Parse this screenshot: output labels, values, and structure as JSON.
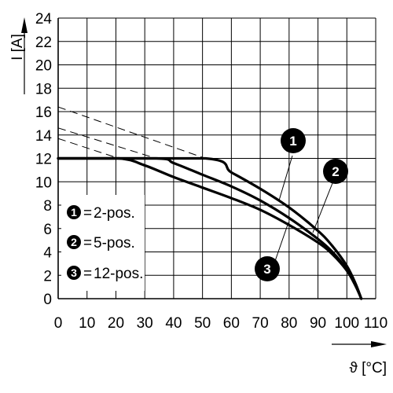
{
  "chart_data": {
    "type": "line",
    "xlabel": "ϑ [°C]",
    "ylabel": "I [A]",
    "xlim": [
      0,
      110
    ],
    "ylim": [
      0,
      24
    ],
    "x_ticks": [
      0,
      10,
      20,
      30,
      40,
      50,
      60,
      70,
      80,
      90,
      100,
      110
    ],
    "y_ticks": [
      0,
      2,
      4,
      6,
      8,
      10,
      12,
      14,
      16,
      18,
      20,
      22,
      24
    ],
    "grid": true,
    "legend_position": "bottom-left",
    "series": [
      {
        "name": "2-pos.",
        "badge": "1",
        "x": [
          0,
          51,
          60,
          70,
          80,
          90,
          95,
          100,
          103,
          105
        ],
        "y": [
          12,
          12,
          10.8,
          9.4,
          7.8,
          5.8,
          4.5,
          2.8,
          1.3,
          0
        ],
        "extrapolation": {
          "x": [
            0,
            51
          ],
          "y": [
            16.4,
            12
          ]
        }
      },
      {
        "name": "5-pos.",
        "badge": "2",
        "x": [
          0,
          34,
          40,
          50,
          60,
          70,
          80,
          90,
          95,
          100,
          103,
          105
        ],
        "y": [
          12,
          12,
          11.6,
          10.6,
          9.6,
          8.4,
          6.9,
          5.1,
          4.0,
          2.5,
          1.2,
          0
        ],
        "extrapolation": {
          "x": [
            0,
            34
          ],
          "y": [
            14.6,
            12
          ]
        }
      },
      {
        "name": "12-pos.",
        "badge": "3",
        "x": [
          0,
          21,
          30,
          40,
          50,
          60,
          70,
          80,
          90,
          95,
          100,
          103,
          105
        ],
        "y": [
          12,
          12,
          11.4,
          10.4,
          9.5,
          8.6,
          7.6,
          6.3,
          4.8,
          3.8,
          2.4,
          1.1,
          0
        ],
        "extrapolation": {
          "x": [
            0,
            21
          ],
          "y": [
            13.7,
            12
          ]
        }
      }
    ],
    "legend_separator": "=",
    "callouts": [
      "1",
      "2",
      "3"
    ],
    "colors": {
      "line": "#000000",
      "grid": "#000000",
      "background": "#ffffff"
    }
  }
}
